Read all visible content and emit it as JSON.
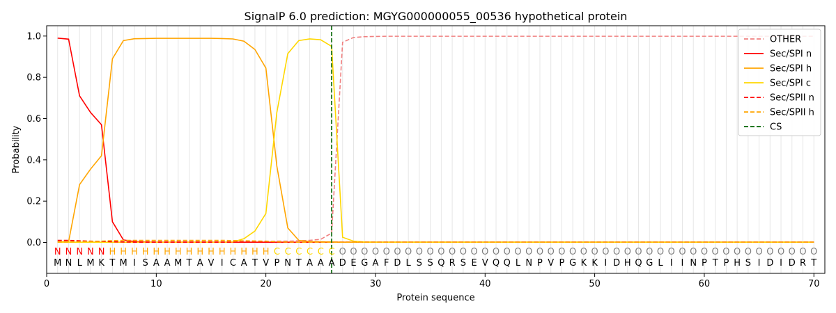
{
  "chart_data": {
    "type": "line",
    "title": "SignalP 6.0 prediction: MGYG000000055_00536 hypothetical protein",
    "xlabel": "Protein sequence",
    "ylabel": "Probability",
    "xlim": [
      0,
      71
    ],
    "ylim": [
      -0.15,
      1.05
    ],
    "xticks": [
      0,
      10,
      20,
      30,
      40,
      50,
      60,
      70
    ],
    "yticks": [
      "0.0",
      "0.2",
      "0.4",
      "0.6",
      "0.8",
      "1.0"
    ],
    "legend_position": "top-right",
    "grid": "vertical lines at every residue",
    "sequence": [
      "M",
      "N",
      "L",
      "M",
      "K",
      "T",
      "M",
      "I",
      "S",
      "A",
      "A",
      "M",
      "T",
      "A",
      "V",
      "I",
      "C",
      "A",
      "T",
      "V",
      "P",
      "N",
      "T",
      "A",
      "A",
      "A",
      "D",
      "E",
      "G",
      "A",
      "F",
      "D",
      "L",
      "S",
      "S",
      "Q",
      "R",
      "S",
      "E",
      "V",
      "Q",
      "Q",
      "L",
      "N",
      "P",
      "V",
      "P",
      "G",
      "K",
      "K",
      "I",
      "D",
      "H",
      "Q",
      "G",
      "L",
      "I",
      "I",
      "N",
      "P",
      "T",
      "P",
      "H",
      "S",
      "I",
      "D",
      "I",
      "D",
      "R",
      "T"
    ],
    "labels": [
      "N",
      "N",
      "N",
      "N",
      "N",
      "H",
      "H",
      "H",
      "H",
      "H",
      "H",
      "H",
      "H",
      "H",
      "H",
      "H",
      "H",
      "H",
      "H",
      "H",
      "C",
      "C",
      "C",
      "C",
      "C",
      "C",
      "O",
      "O",
      "O",
      "O",
      "O",
      "O",
      "O",
      "O",
      "O",
      "O",
      "O",
      "O",
      "O",
      "O",
      "O",
      "O",
      "O",
      "O",
      "O",
      "O",
      "O",
      "O",
      "O",
      "O",
      "O",
      "O",
      "O",
      "O",
      "O",
      "O",
      "O",
      "O",
      "O",
      "O",
      "O",
      "O",
      "O",
      "O",
      "O",
      "O",
      "O",
      "O",
      "O",
      "O"
    ],
    "label_colors": {
      "N": "#ff0000",
      "H": "#ffa500",
      "C": "#ffd700",
      "O": "#808080"
    },
    "cleavage_site": 26,
    "series": [
      {
        "name": "OTHER",
        "color": "#f08080",
        "dash": true,
        "values": [
          0.003,
          0.003,
          0.003,
          0.003,
          0.003,
          0.003,
          0.003,
          0.003,
          0.003,
          0.003,
          0.003,
          0.003,
          0.003,
          0.003,
          0.003,
          0.003,
          0.003,
          0.005,
          0.005,
          0.005,
          0.006,
          0.006,
          0.008,
          0.01,
          0.015,
          0.045,
          0.97,
          0.993,
          0.997,
          0.998,
          0.999,
          0.999,
          0.999,
          0.999,
          0.999,
          0.999,
          0.999,
          0.999,
          0.999,
          0.999,
          0.999,
          0.999,
          0.999,
          0.999,
          0.999,
          0.999,
          0.999,
          0.999,
          0.999,
          0.999,
          0.999,
          0.999,
          0.999,
          0.999,
          0.999,
          0.999,
          0.999,
          0.999,
          0.999,
          0.999,
          0.999,
          0.999,
          0.999,
          0.999,
          0.999,
          0.999,
          0.999,
          0.999,
          0.999,
          0.999
        ]
      },
      {
        "name": "Sec/SPI n",
        "color": "#ff0000",
        "dash": false,
        "values": [
          0.99,
          0.985,
          0.71,
          0.63,
          0.57,
          0.1,
          0.012,
          0.004,
          0.002,
          0.001,
          0.001,
          0.001,
          0.001,
          0.001,
          0.001,
          0.001,
          0.001,
          0.001,
          0.001,
          0.001,
          0.001,
          0.001,
          0.001,
          0.001,
          0.001,
          0.001,
          0.001,
          0.001,
          0.001,
          0.001,
          0.001,
          0.001,
          0.001,
          0.001,
          0.001,
          0.001,
          0.001,
          0.001,
          0.001,
          0.001,
          0.001,
          0.001,
          0.001,
          0.001,
          0.001,
          0.001,
          0.001,
          0.001,
          0.001,
          0.001,
          0.001,
          0.001,
          0.001,
          0.001,
          0.001,
          0.001,
          0.001,
          0.001,
          0.001,
          0.001,
          0.001,
          0.001,
          0.001,
          0.001,
          0.001,
          0.001,
          0.001,
          0.001,
          0.001,
          0.001
        ]
      },
      {
        "name": "Sec/SPI h",
        "color": "#ffa500",
        "dash": false,
        "values": [
          0.003,
          0.003,
          0.28,
          0.355,
          0.42,
          0.89,
          0.978,
          0.987,
          0.988,
          0.989,
          0.989,
          0.989,
          0.989,
          0.989,
          0.989,
          0.988,
          0.986,
          0.975,
          0.935,
          0.845,
          0.37,
          0.07,
          0.01,
          0.004,
          0.003,
          0.002,
          0.001,
          0.001,
          0.001,
          0.001,
          0.001,
          0.001,
          0.001,
          0.001,
          0.001,
          0.001,
          0.001,
          0.001,
          0.001,
          0.001,
          0.001,
          0.001,
          0.001,
          0.001,
          0.001,
          0.001,
          0.001,
          0.001,
          0.001,
          0.001,
          0.001,
          0.001,
          0.001,
          0.001,
          0.001,
          0.001,
          0.001,
          0.001,
          0.001,
          0.001,
          0.001,
          0.001,
          0.001,
          0.001,
          0.001,
          0.001,
          0.001,
          0.001,
          0.001,
          0.001
        ]
      },
      {
        "name": "Sec/SPI c",
        "color": "#ffd700",
        "dash": false,
        "values": [
          0.001,
          0.001,
          0.001,
          0.001,
          0.001,
          0.001,
          0.001,
          0.001,
          0.001,
          0.001,
          0.001,
          0.001,
          0.001,
          0.001,
          0.001,
          0.001,
          0.002,
          0.018,
          0.055,
          0.14,
          0.63,
          0.915,
          0.978,
          0.986,
          0.982,
          0.95,
          0.025,
          0.006,
          0.002,
          0.001,
          0.001,
          0.001,
          0.001,
          0.001,
          0.001,
          0.001,
          0.001,
          0.001,
          0.001,
          0.001,
          0.001,
          0.001,
          0.001,
          0.001,
          0.001,
          0.001,
          0.001,
          0.001,
          0.001,
          0.001,
          0.001,
          0.001,
          0.001,
          0.001,
          0.001,
          0.001,
          0.001,
          0.001,
          0.001,
          0.001,
          0.001,
          0.001,
          0.001,
          0.001,
          0.001,
          0.001,
          0.001,
          0.001,
          0.001,
          0.001
        ]
      },
      {
        "name": "Sec/SPII n",
        "color": "#ff0000",
        "dash": true,
        "values": [
          0.01,
          0.01,
          0.008,
          0.006,
          0.005,
          0.003,
          0.002,
          0.001,
          0.001,
          0.001,
          0.001,
          0.001,
          0.001,
          0.001,
          0.001,
          0.001,
          0.001,
          0.001,
          0.001,
          0.001,
          0.001,
          0.001,
          0.001,
          0.001,
          0.001,
          0.001,
          0.001,
          0.001,
          0.001,
          0.001,
          0.001,
          0.001,
          0.001,
          0.001,
          0.001,
          0.001,
          0.001,
          0.001,
          0.001,
          0.001,
          0.001,
          0.001,
          0.001,
          0.001,
          0.001,
          0.001,
          0.001,
          0.001,
          0.001,
          0.001,
          0.001,
          0.001,
          0.001,
          0.001,
          0.001,
          0.001,
          0.001,
          0.001,
          0.001,
          0.001,
          0.001,
          0.001,
          0.001,
          0.001,
          0.001,
          0.001,
          0.001,
          0.001,
          0.001,
          0.001
        ]
      },
      {
        "name": "Sec/SPII h",
        "color": "#ffa500",
        "dash": true,
        "values": [
          0.002,
          0.002,
          0.004,
          0.005,
          0.006,
          0.009,
          0.01,
          0.01,
          0.01,
          0.01,
          0.01,
          0.01,
          0.01,
          0.01,
          0.01,
          0.01,
          0.009,
          0.008,
          0.007,
          0.006,
          0.003,
          0.002,
          0.001,
          0.001,
          0.001,
          0.001,
          0.001,
          0.001,
          0.001,
          0.001,
          0.001,
          0.001,
          0.001,
          0.001,
          0.001,
          0.001,
          0.001,
          0.001,
          0.001,
          0.001,
          0.001,
          0.001,
          0.001,
          0.001,
          0.001,
          0.001,
          0.001,
          0.001,
          0.001,
          0.001,
          0.001,
          0.001,
          0.001,
          0.001,
          0.001,
          0.001,
          0.001,
          0.001,
          0.001,
          0.001,
          0.001,
          0.001,
          0.001,
          0.001,
          0.001,
          0.001,
          0.001,
          0.001,
          0.001,
          0.001
        ]
      }
    ],
    "cs_legend": {
      "name": "CS",
      "color": "#006400"
    }
  }
}
